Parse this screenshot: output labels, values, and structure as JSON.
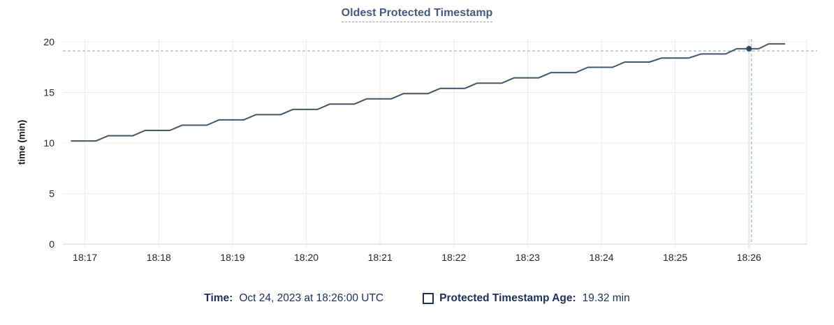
{
  "chart_data": {
    "type": "line",
    "title": "Oldest Protected Timestamp",
    "ylabel": "time (min)",
    "xlabel": "",
    "grid": true,
    "legend_position": "bottom",
    "y_ticks": [
      0,
      5,
      10,
      15,
      20
    ],
    "ylim": [
      0,
      20
    ],
    "x_ticks": [
      "18:17",
      "18:18",
      "18:19",
      "18:20",
      "18:21",
      "18:22",
      "18:23",
      "18:24",
      "18:25",
      "18:26"
    ],
    "x_domain": [
      "18:16:42",
      "18:26:47"
    ],
    "series": [
      {
        "name": "Protected Timestamp Age",
        "color": "#44546b",
        "points": [
          [
            "18:16:49",
            10.2
          ],
          [
            "18:17:09",
            10.2
          ],
          [
            "18:17:19",
            10.72
          ],
          [
            "18:17:39",
            10.72
          ],
          [
            "18:17:49",
            11.24
          ],
          [
            "18:18:09",
            11.24
          ],
          [
            "18:18:19",
            11.76
          ],
          [
            "18:18:39",
            11.76
          ],
          [
            "18:18:49",
            12.28
          ],
          [
            "18:19:09",
            12.28
          ],
          [
            "18:19:19",
            12.8
          ],
          [
            "18:19:39",
            12.8
          ],
          [
            "18:19:49",
            13.32
          ],
          [
            "18:20:09",
            13.32
          ],
          [
            "18:20:19",
            13.84
          ],
          [
            "18:20:39",
            13.84
          ],
          [
            "18:20:49",
            14.36
          ],
          [
            "18:21:09",
            14.36
          ],
          [
            "18:21:19",
            14.88
          ],
          [
            "18:21:39",
            14.88
          ],
          [
            "18:21:49",
            15.4
          ],
          [
            "18:22:09",
            15.4
          ],
          [
            "18:22:19",
            15.92
          ],
          [
            "18:22:39",
            15.92
          ],
          [
            "18:22:49",
            16.44
          ],
          [
            "18:23:09",
            16.44
          ],
          [
            "18:23:19",
            16.96
          ],
          [
            "18:23:39",
            16.96
          ],
          [
            "18:23:49",
            17.48
          ],
          [
            "18:24:09",
            17.48
          ],
          [
            "18:24:19",
            18.0
          ],
          [
            "18:24:39",
            18.0
          ],
          [
            "18:24:49",
            18.4
          ],
          [
            "18:25:11",
            18.4
          ],
          [
            "18:25:21",
            18.8
          ],
          [
            "18:25:41",
            18.8
          ],
          [
            "18:25:50",
            19.32
          ],
          [
            "18:26:08",
            19.32
          ],
          [
            "18:26:16",
            19.8
          ],
          [
            "18:26:29",
            19.8
          ]
        ]
      }
    ],
    "hover": {
      "point_time": "18:26:00",
      "point_value": 19.32,
      "crosshair_time": "18:26:02",
      "crosshair_value": 19.1,
      "highlighted_x_tick": "18:26"
    },
    "colors": {
      "line": "#44546b",
      "dot": "#36465e",
      "crosshair": "#a6b9c2",
      "grid": "#ececec",
      "axis": "#d6d6d6",
      "highlight_band": "#e9ecef",
      "tick_text": "#23262d",
      "title_text": "#46597c",
      "legend_text": "#1b3154"
    }
  },
  "legend": {
    "time_label": "Time:",
    "time_value": "Oct 24, 2023 at 18:26:00 UTC",
    "series_label": "Protected Timestamp Age:",
    "series_value": "19.32 min"
  }
}
